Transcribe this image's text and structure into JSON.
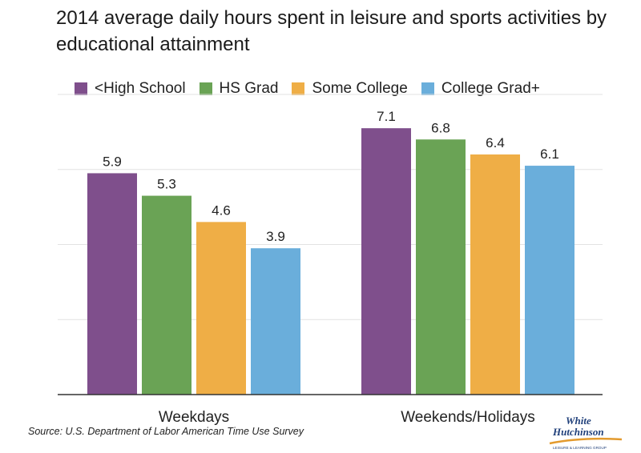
{
  "title": "2014 average daily hours spent in leisure and sports activities by educational attainment",
  "source": "Source: U.S. Department of Labor American Time Use Survey",
  "logo": {
    "line1": "White",
    "line2": "Hutchinson",
    "tagline": "LEISURE & LEARNING GROUP"
  },
  "colors": {
    "less_high_school": "#7f4f8c",
    "hs_grad": "#6aa355",
    "some_college": "#efae46",
    "college_grad_plus": "#6aaedb",
    "grid": "#e2e2e2",
    "axis": "#333333"
  },
  "chart_data": {
    "type": "bar",
    "title": "2014 average daily hours spent in leisure and sports activities by educational attainment",
    "categories": [
      "Weekdays",
      "Weekends/Holidays"
    ],
    "series": [
      {
        "name": "<High School",
        "values": [
          5.9,
          7.1
        ],
        "color": "#7f4f8c"
      },
      {
        "name": "HS Grad",
        "values": [
          5.3,
          6.8
        ],
        "color": "#6aa355"
      },
      {
        "name": "Some College",
        "values": [
          4.6,
          6.4
        ],
        "color": "#efae46"
      },
      {
        "name": "College Grad+",
        "values": [
          3.9,
          6.1
        ],
        "color": "#6aaedb"
      }
    ],
    "xlabel": "",
    "ylabel": "",
    "ylim": [
      0,
      8
    ],
    "grid": true,
    "legend": "top",
    "data_labels": true
  }
}
